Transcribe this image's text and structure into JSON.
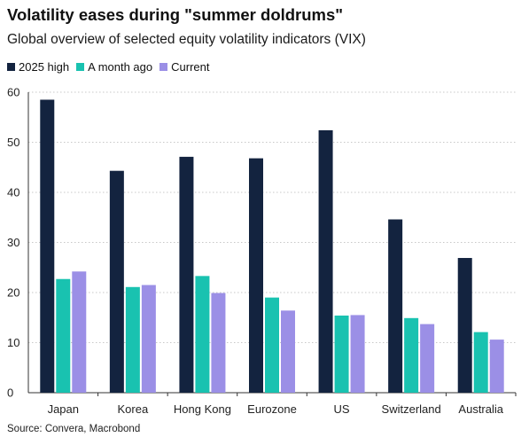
{
  "header": {
    "title": "Volatility eases during \"summer doldrums\"",
    "subtitle": "Global overview of selected equity volatility indicators (VIX)"
  },
  "footer": {
    "source": "Source: Convera, Macrobond"
  },
  "chart_data": {
    "type": "bar",
    "title": "Volatility eases during \"summer doldrums\"",
    "subtitle": "Global overview of selected equity volatility indicators (VIX)",
    "xlabel": "",
    "ylabel": "",
    "ylim": [
      0,
      60
    ],
    "yticks": [
      0,
      10,
      20,
      30,
      40,
      50,
      60
    ],
    "grid": true,
    "legend_position": "top-left",
    "categories": [
      "Japan",
      "Korea",
      "Hong Kong",
      "Eurozone",
      "US",
      "Switzerland",
      "Australia"
    ],
    "series": [
      {
        "name": "2025 high",
        "color": "#13233f",
        "values": [
          58.5,
          44.3,
          47.1,
          46.8,
          52.4,
          34.6,
          26.9
        ]
      },
      {
        "name": "A month ago",
        "color": "#19c2b0",
        "values": [
          22.7,
          21.1,
          23.3,
          19.0,
          15.4,
          14.9,
          12.1
        ]
      },
      {
        "name": "Current",
        "color": "#9b8fe6",
        "values": [
          24.2,
          21.5,
          19.9,
          16.4,
          15.5,
          13.7,
          10.6
        ]
      }
    ]
  }
}
